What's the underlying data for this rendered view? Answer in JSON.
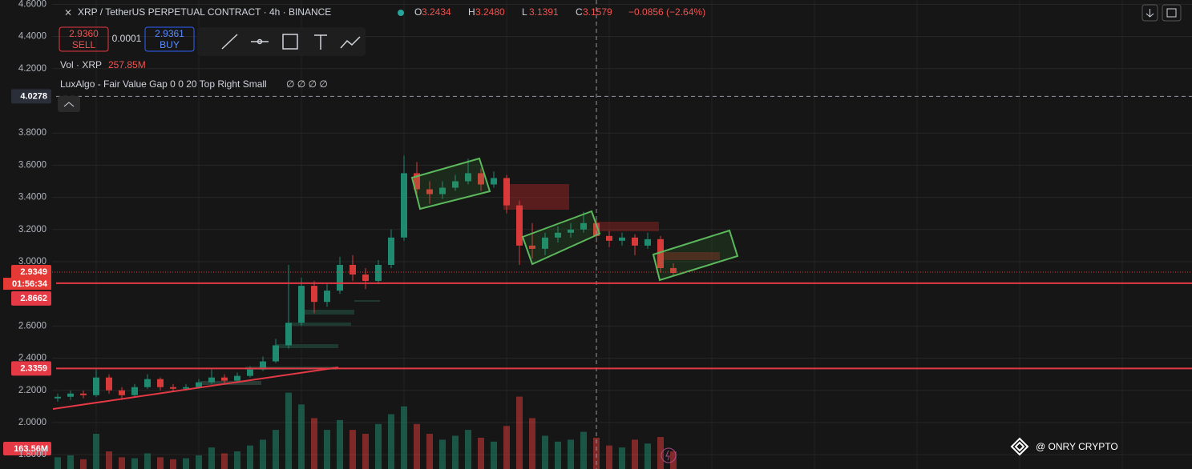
{
  "header": {
    "symbol": "XRP / TetherUS PERPETUAL CONTRACT · 4h · BINANCE",
    "ohlc": [
      {
        "label": "O",
        "value": "3.2434"
      },
      {
        "label": "H",
        "value": "3.2480"
      },
      {
        "label": "L",
        "value": "3.1391"
      },
      {
        "label": "C",
        "value": "3.1579"
      }
    ],
    "change": "−0.0856 (−2.64%)"
  },
  "trade": {
    "sell_price": "2.9360",
    "sell": "SELL",
    "spread": "0.0001",
    "buy_price": "2.9361",
    "buy": "BUY"
  },
  "volume_legend": {
    "label": "Vol · XRP",
    "value": "257.85M"
  },
  "indicator": {
    "label": "LuxAlgo - Fair Value Gap 0 0 20 Top Right Small",
    "values": "∅ ∅ ∅ ∅"
  },
  "watermark": "@ ONRY CRYPTO",
  "chart_data": {
    "type": "candlestick",
    "categories": [
      null,
      null,
      null,
      null,
      null,
      null,
      null,
      null,
      null,
      null,
      null,
      null,
      null,
      null,
      null,
      null,
      null,
      null,
      null,
      null,
      null,
      null,
      null,
      null,
      null,
      null,
      null,
      null,
      null,
      null,
      null,
      null,
      null,
      null,
      null,
      null,
      null,
      null,
      null,
      null,
      null,
      null,
      null,
      null,
      null,
      null,
      null,
      null,
      null
    ],
    "open": [
      2.15,
      2.16,
      2.18,
      2.17,
      2.28,
      2.2,
      2.17,
      2.22,
      2.27,
      2.22,
      2.21,
      2.22,
      2.25,
      2.28,
      2.26,
      2.29,
      2.33,
      2.38,
      2.48,
      2.62,
      2.85,
      2.75,
      2.82,
      2.98,
      2.92,
      2.88,
      2.98,
      3.15,
      3.55,
      3.45,
      3.42,
      3.46,
      3.5,
      3.55,
      3.48,
      3.52,
      3.35,
      3.1,
      3.08,
      3.15,
      3.18,
      3.2,
      3.24,
      3.16,
      3.13,
      3.15,
      3.1,
      3.14,
      2.96
    ],
    "high": [
      2.18,
      2.2,
      2.2,
      2.33,
      2.3,
      2.22,
      2.24,
      2.3,
      2.28,
      2.24,
      2.24,
      2.27,
      2.33,
      2.3,
      2.31,
      2.35,
      2.41,
      2.52,
      2.98,
      2.9,
      2.88,
      2.86,
      3.03,
      3.04,
      2.96,
      3.01,
      3.2,
      3.66,
      3.62,
      3.5,
      3.5,
      3.54,
      3.64,
      3.58,
      3.56,
      3.54,
      3.38,
      3.24,
      3.18,
      3.22,
      3.24,
      3.31,
      3.27,
      3.19,
      3.18,
      3.17,
      3.18,
      3.16,
      2.99
    ],
    "low": [
      2.13,
      2.14,
      2.15,
      2.16,
      2.18,
      2.14,
      2.16,
      2.21,
      2.2,
      2.19,
      2.2,
      2.21,
      2.24,
      2.24,
      2.25,
      2.28,
      2.32,
      2.37,
      2.46,
      2.6,
      2.68,
      2.72,
      2.8,
      2.88,
      2.83,
      2.86,
      2.96,
      3.13,
      3.4,
      3.36,
      3.39,
      3.44,
      3.48,
      3.44,
      3.46,
      3.3,
      2.98,
      3.02,
      3.04,
      3.12,
      3.15,
      3.18,
      3.12,
      3.09,
      3.1,
      3.04,
      3.08,
      2.93,
      2.91
    ],
    "close": [
      2.16,
      2.18,
      2.17,
      2.28,
      2.2,
      2.17,
      2.22,
      2.27,
      2.22,
      2.21,
      2.22,
      2.25,
      2.28,
      2.26,
      2.29,
      2.33,
      2.38,
      2.48,
      2.62,
      2.85,
      2.75,
      2.82,
      2.98,
      2.92,
      2.88,
      2.98,
      3.15,
      3.55,
      3.45,
      3.42,
      3.46,
      3.5,
      3.55,
      3.48,
      3.52,
      3.35,
      3.1,
      3.08,
      3.15,
      3.18,
      3.2,
      3.24,
      3.16,
      3.13,
      3.15,
      3.1,
      3.14,
      2.96,
      2.93
    ],
    "volume": [
      60,
      70,
      50,
      180,
      90,
      60,
      55,
      80,
      60,
      50,
      55,
      70,
      110,
      80,
      90,
      120,
      150,
      200,
      390,
      330,
      260,
      200,
      250,
      200,
      180,
      230,
      280,
      320,
      230,
      180,
      150,
      170,
      200,
      160,
      140,
      220,
      370,
      260,
      170,
      140,
      150,
      190,
      160,
      120,
      110,
      150,
      130,
      163.56,
      90
    ],
    "volume_ylim": [
      0,
      450
    ],
    "volume_badge": "163.56M",
    "countdown": "01:56:34",
    "ylim": [
      1.711,
      4.627
    ],
    "yticks": [
      {
        "value": 1.8,
        "label": "1.8000"
      },
      {
        "value": 2.0,
        "label": "2.0000"
      },
      {
        "value": 2.2,
        "label": "2.2000"
      },
      {
        "value": 2.4,
        "label": "2.4000"
      },
      {
        "value": 2.6,
        "label": "2.6000"
      },
      {
        "value": 3.0,
        "label": "3.0000"
      },
      {
        "value": 3.2,
        "label": "3.2000"
      },
      {
        "value": 3.4,
        "label": "3.4000"
      },
      {
        "value": 3.6,
        "label": "3.6000"
      },
      {
        "value": 3.8,
        "label": "3.8000"
      },
      {
        "value": 4.2,
        "label": "4.2000"
      },
      {
        "value": 4.4,
        "label": "4.4000"
      },
      {
        "value": 4.6,
        "label": "4.6000"
      }
    ],
    "grid": true,
    "up_color": "#1f8a70",
    "down_color": "#d83a3a",
    "price_lines": [
      {
        "value": 4.0278,
        "color": "#9598a1",
        "dash": "5 4",
        "badge": "#2a2e39"
      },
      {
        "value": 2.9349,
        "color": "#d83a3a",
        "dash": "1 2",
        "badge": "#e53935"
      },
      {
        "value": 2.8662,
        "color": "#e53945",
        "dash": "",
        "badge": "#e53945"
      },
      {
        "value": 2.3359,
        "color": "#e53945",
        "dash": "",
        "badge": "#e53945"
      }
    ]
  }
}
